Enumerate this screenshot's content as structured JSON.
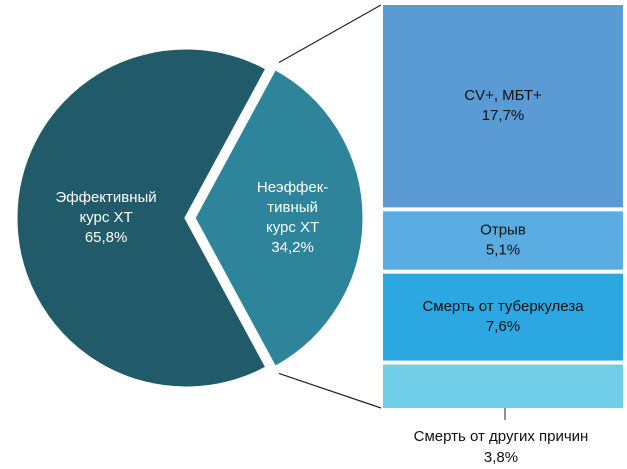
{
  "chart_data": [
    {
      "type": "pie",
      "labels": [
        [
          "Эффективный",
          "курс ХТ"
        ],
        [
          "Неэффек-",
          "тивный",
          "курс ХТ"
        ]
      ],
      "values": [
        65.8,
        34.2
      ],
      "value_labels": [
        "65,8%",
        "34,2%"
      ],
      "colors": [
        "#215b69",
        "#2e849b"
      ]
    },
    {
      "type": "stacked_bar",
      "categories": [
        "CV+, МБТ+",
        "Отрыв",
        "Смерть от туберкулеза",
        "Смерть от других причин"
      ],
      "values": [
        17.7,
        5.1,
        7.6,
        3.8
      ],
      "value_labels": [
        "17,7%",
        "5,1%",
        "7,6%",
        "3,8%"
      ],
      "colors": [
        "#5b9bd5",
        "#5aade2",
        "#2ba7e1",
        "#6fcde7"
      ]
    }
  ]
}
